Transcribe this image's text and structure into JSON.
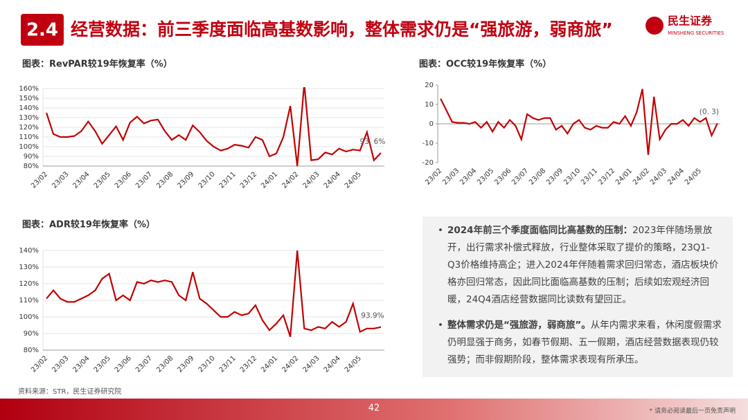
{
  "header": {
    "badge": "2.4",
    "title": "经营数据：前三季度面临高基数影响，整体需求仍是“强旅游，弱商旅”"
  },
  "logo": {
    "name": "民生证券",
    "english": "MINSHENG SECURITIES"
  },
  "chart_data": [
    {
      "type": "line",
      "title": "图表：RevPAR较19年恢复率（%）",
      "color": "#c00000",
      "grid": true,
      "categories": [
        "23/02",
        null,
        null,
        "23/03",
        null,
        null,
        "23/04",
        null,
        null,
        "23/05",
        null,
        null,
        "23/06",
        null,
        null,
        "23/07",
        null,
        null,
        "23/08",
        null,
        null,
        "23/09",
        null,
        null,
        "23/10",
        null,
        null,
        "23/11",
        null,
        null,
        "23/12",
        null,
        null,
        "24/01",
        null,
        null,
        "24/02",
        null,
        null,
        "24/03",
        null,
        null,
        "24/04",
        null,
        null,
        "24/05",
        null,
        null,
        null
      ],
      "values": [
        135,
        113,
        110,
        110,
        111,
        116,
        126,
        116,
        103,
        112,
        121,
        107,
        125,
        131,
        124,
        127,
        128,
        116,
        107,
        112,
        107,
        122,
        115,
        106,
        100,
        96,
        98,
        102,
        101,
        99,
        110,
        107,
        90,
        93,
        110,
        142,
        80,
        165,
        86,
        87,
        94,
        92,
        98,
        95,
        97,
        96,
        115,
        86,
        93.6
      ],
      "value_labels": [
        null,
        null,
        null,
        null,
        null,
        null,
        null,
        null,
        null,
        null,
        null,
        null,
        null,
        null,
        null,
        null,
        null,
        null,
        null,
        null,
        null,
        null,
        null,
        null,
        null,
        null,
        null,
        null,
        null,
        null,
        null,
        null,
        null,
        null,
        null,
        null,
        null,
        null,
        null,
        null,
        null,
        null,
        null,
        null,
        null,
        null,
        null,
        null,
        "93. 6%"
      ],
      "ylim": [
        80,
        160
      ],
      "yticks": [
        {
          "value": 80,
          "label": "80%"
        },
        {
          "value": 90,
          "label": "90%"
        },
        {
          "value": 100,
          "label": "100%"
        },
        {
          "value": 110,
          "label": "110%"
        },
        {
          "value": 120,
          "label": "120%"
        },
        {
          "value": 130,
          "label": "130%"
        },
        {
          "value": 140,
          "label": "140%"
        },
        {
          "value": 150,
          "label": "150%"
        },
        {
          "value": 160,
          "label": "160%"
        }
      ]
    },
    {
      "type": "line",
      "title": "图表：OCC较19年恢复率（%）",
      "color": "#c00000",
      "grid": false,
      "categories": [
        "23/02",
        null,
        null,
        "23/03",
        null,
        null,
        "23/04",
        null,
        null,
        "23/05",
        null,
        null,
        "23/06",
        null,
        null,
        "23/07",
        null,
        null,
        "23/08",
        null,
        null,
        "23/09",
        null,
        null,
        "23/10",
        null,
        null,
        "23/11",
        null,
        null,
        "23/12",
        null,
        null,
        "24/01",
        null,
        null,
        "24/02",
        null,
        null,
        "24/03",
        null,
        null,
        "24/04",
        null,
        null,
        "24/05",
        null,
        null,
        null
      ],
      "values": [
        13,
        7,
        1,
        0.5,
        0.5,
        0,
        1,
        -2,
        1,
        -4,
        1,
        -2,
        2,
        -1,
        -8,
        5,
        3,
        2,
        3,
        3,
        -3,
        -1,
        -5,
        0,
        2,
        -2,
        -3,
        -1,
        -2,
        -2,
        1,
        0,
        4,
        -1,
        6,
        18,
        -16,
        14,
        -8,
        -3,
        0,
        0,
        2,
        -1,
        3,
        1,
        3,
        -6,
        0.3
      ],
      "value_labels": [
        null,
        null,
        null,
        null,
        null,
        null,
        null,
        null,
        null,
        null,
        null,
        null,
        null,
        null,
        null,
        null,
        null,
        null,
        null,
        null,
        null,
        null,
        null,
        null,
        null,
        null,
        null,
        null,
        null,
        null,
        null,
        null,
        null,
        null,
        null,
        null,
        null,
        null,
        null,
        null,
        null,
        null,
        null,
        null,
        null,
        null,
        null,
        null,
        "(0. 3)"
      ],
      "ylim": [
        -20,
        20
      ],
      "yticks": [
        -20,
        -10,
        0,
        10,
        20
      ]
    },
    {
      "type": "line",
      "title": "图表：ADR较19年恢复率（%）",
      "color": "#c00000",
      "grid": true,
      "categories": [
        "23/02",
        null,
        null,
        "23/03",
        null,
        null,
        "23/04",
        null,
        null,
        "23/05",
        null,
        null,
        "23/06",
        null,
        null,
        "23/07",
        null,
        null,
        "23/08",
        null,
        null,
        "23/09",
        null,
        null,
        "23/10",
        null,
        null,
        "23/11",
        null,
        null,
        "23/12",
        null,
        null,
        "24/01",
        null,
        null,
        "24/02",
        null,
        null,
        "24/03",
        null,
        null,
        "24/04",
        null,
        null,
        "24/05",
        null,
        null,
        null
      ],
      "values": [
        111,
        116,
        111,
        109,
        109,
        111,
        113,
        116,
        123,
        126,
        110,
        113,
        110,
        121,
        120,
        122,
        121,
        122,
        121,
        113,
        110,
        127,
        111,
        108,
        104,
        100,
        100,
        103,
        101,
        102,
        107,
        98,
        92,
        96,
        101,
        88,
        140,
        93,
        92,
        94,
        93,
        97,
        94,
        97,
        108,
        91,
        93,
        93,
        93.9
      ],
      "value_labels": [
        null,
        null,
        null,
        null,
        null,
        null,
        null,
        null,
        null,
        null,
        null,
        null,
        null,
        null,
        null,
        null,
        null,
        null,
        null,
        null,
        null,
        null,
        null,
        null,
        null,
        null,
        null,
        null,
        null,
        null,
        null,
        null,
        null,
        null,
        null,
        null,
        null,
        null,
        null,
        null,
        null,
        null,
        null,
        null,
        null,
        null,
        null,
        null,
        "93.9%"
      ],
      "ylim": [
        80,
        140
      ],
      "yticks": [
        {
          "value": 80,
          "label": "80%"
        },
        {
          "value": 90,
          "label": "90%"
        },
        {
          "value": 100,
          "label": "100%"
        },
        {
          "value": 110,
          "label": "110%"
        },
        {
          "value": 120,
          "label": "120%"
        },
        {
          "value": 130,
          "label": "130%"
        },
        {
          "value": 140,
          "label": "140%"
        }
      ]
    }
  ],
  "text_box": {
    "items": [
      {
        "lead": "2024年前三个季度面临同比高基数的压制：",
        "body": "2023年伴随场景放开，出行需求补偿式释放，行业整体采取了提价的策略，23Q1-Q3价格维持高企；进入2024年伴随着需求回归常态，酒店板块价格亦回归常态，因此同比面临高基数的压制；后续如宏观经济回暖，24Q4酒店经营数据同比读数有望回正。"
      },
      {
        "lead": "整体需求仍是“强旅游，弱商旅”。",
        "body": "从年内需求来看，休闲度假需求仍明显强于商务，如春节假期、五一假期，酒店经营数据表现仍较强势；而非假期阶段，整体需求表现有所承压。"
      }
    ]
  },
  "source": "资料来源：STR，民生证券研究院",
  "page_number": "42",
  "disclaimer": "* 请务必阅读最后一页免责声明"
}
